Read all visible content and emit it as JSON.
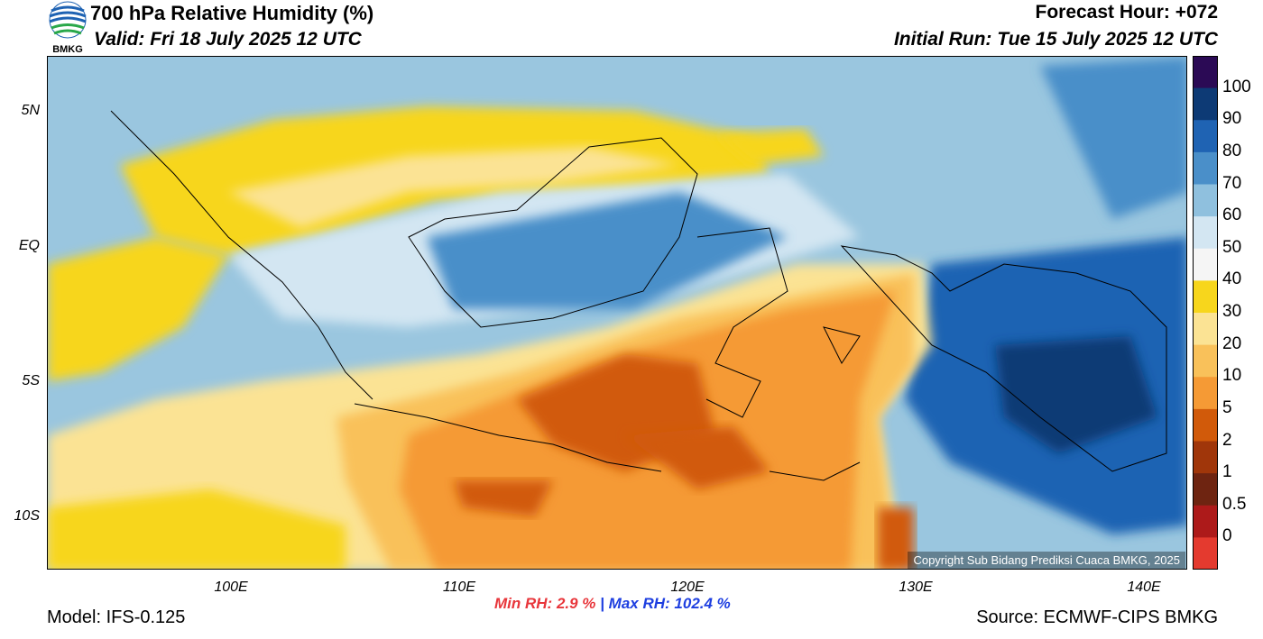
{
  "header": {
    "title": "700 hPa Relative Humidity (%)",
    "valid": "Valid: Fri 18 July 2025 12 UTC",
    "forecast_hour": "Forecast Hour: +072",
    "initial_run": "Initial Run: Tue 15 July 2025 12 UTC",
    "logo_text": "BMKG"
  },
  "map": {
    "lat_labels": [
      "5N",
      "EQ",
      "5S",
      "10S"
    ],
    "lon_labels": [
      "100E",
      "110E",
      "120E",
      "130E",
      "140E"
    ],
    "copyright": "Copyright Sub Bidang Prediksi Cuaca BMKG, 2025"
  },
  "colorbar": {
    "labels": [
      "100",
      "90",
      "80",
      "70",
      "60",
      "50",
      "40",
      "30",
      "20",
      "10",
      "5",
      "2",
      "1",
      "0.5",
      "0"
    ],
    "colors": [
      "#2b0a55",
      "#0d3a75",
      "#1f63b3",
      "#4a8fc9",
      "#8fc0de",
      "#d3e6f2",
      "#f5f5f5",
      "#f7d61c",
      "#fbe394",
      "#f9c15a",
      "#f59a35",
      "#d15a0a",
      "#a0360a",
      "#6e2411",
      "#ad1a1a",
      "#e43a2f"
    ]
  },
  "stats": {
    "min_label": "Min RH:",
    "min_value": "2.9 %",
    "separator": "|",
    "max_label": "Max RH:",
    "max_value": "102.4 %"
  },
  "footer": {
    "model": "Model: IFS-0.125",
    "source": "Source: ECMWF-CIPS BMKG"
  }
}
